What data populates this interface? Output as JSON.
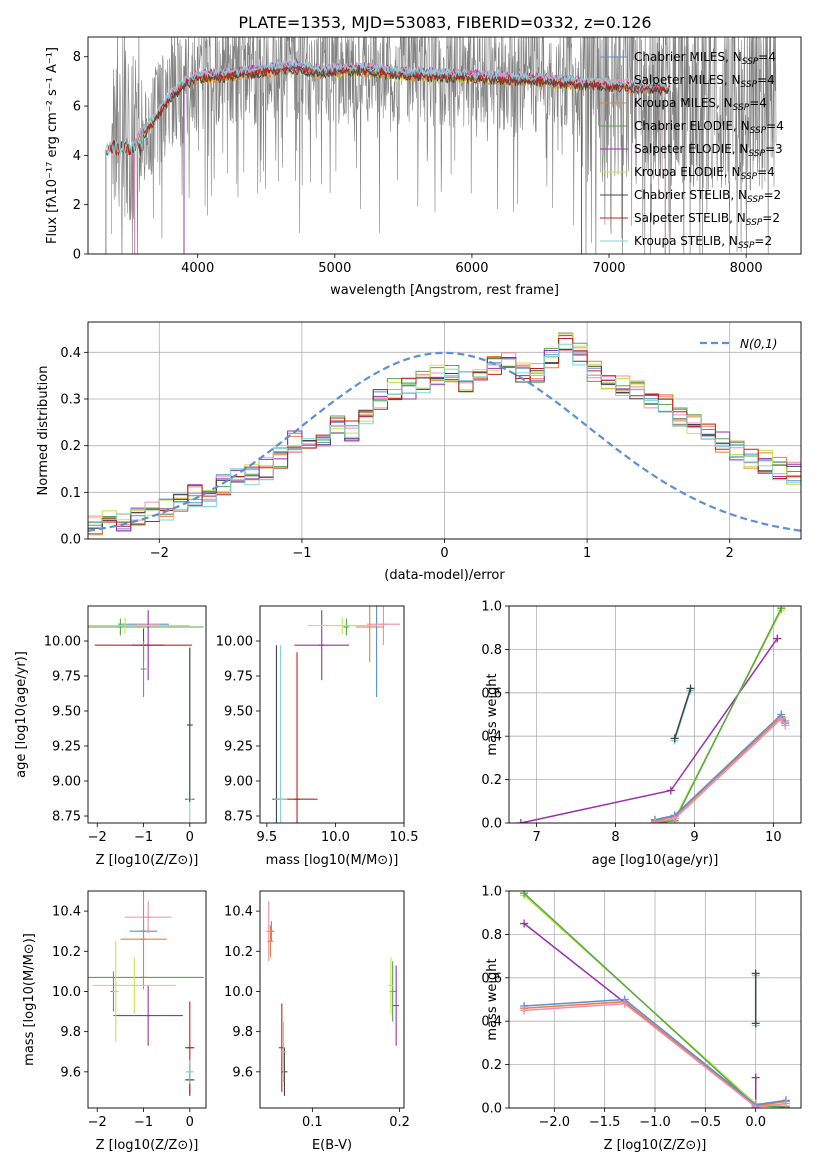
{
  "figure": {
    "title": "PLATE=1353, MJD=53083, FIBERID=0332, z=0.126"
  },
  "colors": {
    "Chabrier MILES": "#5b8fd6",
    "Salpeter MILES": "#f08cb4",
    "Kroupa MILES": "#e8803a",
    "Chabrier ELODIE": "#55a84a",
    "Salpeter ELODIE": "#9b2fae",
    "Kroupa ELODIE": "#c9e34a",
    "Chabrier STELIB": "#444444",
    "Salpeter STELIB": "#c0231b",
    "Kroupa STELIB": "#7fd6d8",
    "data": "#808080",
    "normal": "#5b8fd6"
  },
  "chart_data": [
    {
      "id": "spectrum",
      "type": "line",
      "xlabel": "wavelength [Angstrom, rest frame]",
      "ylabel": "Flux [f_λ 10^-17 erg cm^-2 s^-1 A^-1]",
      "xlim": [
        3200,
        8400
      ],
      "ylim": [
        0,
        8.8
      ],
      "xticks": [
        4000,
        5000,
        6000,
        7000,
        8000
      ],
      "yticks": [
        0,
        2,
        4,
        6,
        8
      ],
      "legend_position": "upper-right",
      "legend": [
        {
          "model": "Chabrier MILES",
          "n": "4"
        },
        {
          "model": "Salpeter MILES",
          "n": "4"
        },
        {
          "model": "Kroupa MILES",
          "n": "4"
        },
        {
          "model": "Chabrier ELODIE",
          "n": "4"
        },
        {
          "model": "Salpeter ELODIE",
          "n": "3"
        },
        {
          "model": "Kroupa ELODIE",
          "n": "4"
        },
        {
          "model": "Chabrier STELIB",
          "n": "2"
        },
        {
          "model": "Salpeter STELIB",
          "n": "2"
        },
        {
          "model": "Kroupa STELIB",
          "n": "2"
        }
      ],
      "continuum_anchors": [
        [
          3330,
          4.2
        ],
        [
          3500,
          4.4
        ],
        [
          3600,
          4.9
        ],
        [
          3700,
          5.6
        ],
        [
          3800,
          6.4
        ],
        [
          3900,
          6.9
        ],
        [
          4000,
          7.2
        ],
        [
          4200,
          7.25
        ],
        [
          4500,
          7.45
        ],
        [
          4700,
          7.6
        ],
        [
          4900,
          7.4
        ],
        [
          5200,
          7.5
        ],
        [
          5500,
          7.3
        ],
        [
          6000,
          7.2
        ],
        [
          6500,
          7.05
        ],
        [
          7000,
          6.85
        ],
        [
          7400,
          6.75
        ]
      ],
      "model_ranges": {
        "MILES": [
          3540,
          7410
        ],
        "ELODIE": [
          3900,
          6800
        ],
        "STELIB": [
          3330,
          7440
        ]
      },
      "data_range": [
        3370,
        8220
      ]
    },
    {
      "id": "residuals",
      "type": "line",
      "xlabel": "(data-model)/error",
      "ylabel": "Normed distribution",
      "xlim": [
        -2.5,
        2.5
      ],
      "ylim": [
        0,
        0.465
      ],
      "xticks": [
        -2,
        -1,
        0,
        1,
        2
      ],
      "yticks": [
        0.0,
        0.1,
        0.2,
        0.3,
        0.4
      ],
      "grid": true,
      "normal_label": "N(0,1)",
      "bin_width": 0.1,
      "bin_start": -2.5,
      "base_hist": [
        0.034,
        0.042,
        0.04,
        0.048,
        0.055,
        0.062,
        0.08,
        0.092,
        0.088,
        0.115,
        0.13,
        0.14,
        0.15,
        0.175,
        0.21,
        0.195,
        0.22,
        0.24,
        0.23,
        0.255,
        0.3,
        0.32,
        0.325,
        0.335,
        0.35,
        0.355,
        0.34,
        0.365,
        0.37,
        0.38,
        0.36,
        0.355,
        0.385,
        0.42,
        0.395,
        0.36,
        0.345,
        0.33,
        0.32,
        0.305,
        0.29,
        0.265,
        0.25,
        0.235,
        0.21,
        0.185,
        0.17,
        0.165,
        0.15,
        0.14,
        0.12,
        0.105,
        0.095,
        0.08,
        0.07,
        0.062,
        0.058,
        0.055,
        0.05,
        0.045
      ]
    },
    {
      "id": "age-vs-Z",
      "type": "scatter",
      "xlabel": "Z [log10(Z/Z⊙)]",
      "ylabel": "age [log10(age/yr)]",
      "xlim": [
        -2.2,
        0.35
      ],
      "ylim": [
        8.7,
        10.25
      ],
      "xticks": [
        -2,
        -1,
        0
      ],
      "yticks": [
        8.75,
        9.0,
        9.25,
        9.5,
        9.75,
        10.0
      ],
      "points": [
        {
          "model": "Chabrier MILES",
          "x": -1.0,
          "y": 10.12,
          "xerr": 0.55,
          "yerr": 0.0
        },
        {
          "model": "Salpeter MILES",
          "x": -0.9,
          "y": 10.12,
          "xerr": 0.25,
          "yerr": 0.0
        },
        {
          "model": "Kroupa MILES",
          "x": -1.1,
          "y": 10.1,
          "xerr": 0.5,
          "yerr": 0.0
        },
        {
          "model": "Chabrier ELODIE",
          "x": -1.5,
          "y": 10.1,
          "xerr": 1.8,
          "yerr": 0.06
        },
        {
          "model": "Salpeter ELODIE",
          "x": -0.9,
          "y": 9.97,
          "xerr": 0.35,
          "yerr": 0.25
        },
        {
          "model": "Kroupa ELODIE",
          "x": -1.4,
          "y": 10.11,
          "xerr": 1.4,
          "yerr": 0.06
        },
        {
          "model": "Chabrier STELIB",
          "x": 0.0,
          "y": 8.87,
          "xerr": 0.1,
          "yerr": 0.0
        },
        {
          "model": "Salpeter STELIB",
          "x": -1.0,
          "y": 9.97,
          "xerr": 1.05,
          "yerr": 0.12
        },
        {
          "model": "Kroupa STELIB",
          "x": 0.0,
          "y": 8.87,
          "xerr": 0.05,
          "yerr": 1.1
        },
        {
          "model": "Chabrier MILES",
          "x": -1.0,
          "y": 9.8,
          "xerr": 0.0,
          "yerr": 0.2
        },
        {
          "model": "Chabrier STELIB",
          "x": 0.0,
          "y": 9.4,
          "xerr": 0.0,
          "yerr": 0.55
        }
      ]
    },
    {
      "id": "age-vs-mass",
      "type": "scatter",
      "xlabel": "mass [log10(M/M⊙)]",
      "ylabel": "",
      "xlim": [
        9.45,
        10.5
      ],
      "ylim": [
        8.7,
        10.25
      ],
      "xticks": [
        9.5,
        10.0,
        10.5
      ],
      "yticks": [
        8.75,
        9.0,
        9.25,
        9.5,
        9.75,
        10.0
      ],
      "points": [
        {
          "model": "Chabrier MILES",
          "x": 10.3,
          "y": 10.1,
          "xerr": 0.0,
          "yerr": 0.5
        },
        {
          "model": "Salpeter MILES",
          "x": 10.35,
          "y": 10.12,
          "xerr": 0.12,
          "yerr": 0.15
        },
        {
          "model": "Kroupa MILES",
          "x": 10.25,
          "y": 10.1,
          "xerr": 0.1,
          "yerr": 0.25
        },
        {
          "model": "Chabrier ELODIE",
          "x": 10.08,
          "y": 10.1,
          "xerr": 0.0,
          "yerr": 0.06
        },
        {
          "model": "Salpeter ELODIE",
          "x": 9.9,
          "y": 9.97,
          "xerr": 0.2,
          "yerr": 0.25
        },
        {
          "model": "Kroupa ELODIE",
          "x": 10.05,
          "y": 10.11,
          "xerr": 0.25,
          "yerr": 0.06
        },
        {
          "model": "Chabrier STELIB",
          "x": 9.57,
          "y": 8.87,
          "xerr": 0.03,
          "yerr": 1.1
        },
        {
          "model": "Salpeter STELIB",
          "x": 9.72,
          "y": 8.87,
          "xerr": 0.15,
          "yerr": 1.05
        },
        {
          "model": "Kroupa STELIB",
          "x": 9.6,
          "y": 8.87,
          "xerr": 0.05,
          "yerr": 1.1
        }
      ]
    },
    {
      "id": "weight-vs-age",
      "type": "line",
      "xlabel": "age [log10(age/yr)]",
      "ylabel": "mass weight",
      "xlim": [
        6.65,
        10.35
      ],
      "ylim": [
        0,
        1.0
      ],
      "xticks": [
        7,
        8,
        9,
        10
      ],
      "yticks": [
        0.0,
        0.2,
        0.4,
        0.6,
        0.8,
        1.0
      ],
      "grid": true,
      "series": [
        {
          "model": "Kroupa STELIB",
          "x": [
            8.75,
            8.95
          ],
          "y": [
            0.38,
            0.61
          ]
        },
        {
          "model": "Chabrier STELIB",
          "x": [
            8.75,
            8.95
          ],
          "y": [
            0.39,
            0.62
          ]
        },
        {
          "model": "Salpeter ELODIE",
          "x": [
            6.8,
            8.7,
            10.05
          ],
          "y": [
            0.0,
            0.15,
            0.85
          ]
        },
        {
          "model": "Kroupa ELODIE",
          "x": [
            8.6,
            8.75,
            10.1
          ],
          "y": [
            0.01,
            0.02,
            0.98
          ]
        },
        {
          "model": "Chabrier ELODIE",
          "x": [
            8.6,
            8.75,
            10.1
          ],
          "y": [
            0.005,
            0.01,
            0.99
          ]
        },
        {
          "model": "Kroupa MILES",
          "x": [
            8.5,
            8.75,
            10.1,
            10.15
          ],
          "y": [
            0.01,
            0.03,
            0.49,
            0.47
          ]
        },
        {
          "model": "Chabrier MILES",
          "x": [
            8.5,
            8.75,
            10.1,
            10.15
          ],
          "y": [
            0.015,
            0.035,
            0.5,
            0.46
          ]
        },
        {
          "model": "Salpeter MILES",
          "x": [
            8.5,
            8.75,
            10.1,
            10.15
          ],
          "y": [
            0.005,
            0.02,
            0.48,
            0.45
          ]
        }
      ]
    },
    {
      "id": "mass-vs-Z",
      "type": "scatter",
      "xlabel": "Z [log10(Z/Z⊙)]",
      "ylabel": "mass [log10(M/M⊙)]",
      "xlim": [
        -2.2,
        0.35
      ],
      "ylim": [
        9.42,
        10.5
      ],
      "xticks": [
        -2,
        -1,
        0
      ],
      "yticks": [
        9.6,
        9.8,
        10.0,
        10.2,
        10.4
      ],
      "points": [
        {
          "model": "Chabrier MILES",
          "x": -1.0,
          "y": 10.3,
          "xerr": 0.3,
          "yerr": 0.05
        },
        {
          "model": "Salpeter MILES",
          "x": -0.9,
          "y": 10.37,
          "xerr": 0.5,
          "yerr": 0.08
        },
        {
          "model": "Kroupa MILES",
          "x": -1.0,
          "y": 10.26,
          "xerr": 0.5,
          "yerr": 0.25
        },
        {
          "model": "Chabrier ELODIE",
          "x": -1.0,
          "y": 10.07,
          "xerr": 1.3,
          "yerr": 0.0
        },
        {
          "model": "Salpeter ELODIE",
          "x": -0.9,
          "y": 9.88,
          "xerr": 0.75,
          "yerr": 0.15
        },
        {
          "model": "Kroupa ELODIE",
          "x": -1.2,
          "y": 10.03,
          "xerr": 0.9,
          "yerr": 0.14
        },
        {
          "model": "Chabrier STELIB",
          "x": 0.0,
          "y": 9.56,
          "xerr": 0.1,
          "yerr": 0.08
        },
        {
          "model": "Salpeter STELIB",
          "x": 0.0,
          "y": 9.72,
          "xerr": 0.1,
          "yerr": 0.23
        },
        {
          "model": "Kroupa STELIB",
          "x": 0.0,
          "y": 9.6,
          "xerr": 0.08,
          "yerr": 0.06
        },
        {
          "model": "Chabrier ELODIE",
          "x": -1.65,
          "y": 10.0,
          "xerr": 0.0,
          "yerr": 0.1
        },
        {
          "model": "Kroupa ELODIE",
          "x": -1.6,
          "y": 10.0,
          "xerr": 0.0,
          "yerr": 0.25
        }
      ]
    },
    {
      "id": "mass-vs-ebv",
      "type": "scatter",
      "xlabel": "E(B-V)",
      "ylabel": "",
      "xlim": [
        0.04,
        0.205
      ],
      "ylim": [
        9.42,
        10.5
      ],
      "xticks": [
        0.1,
        0.2
      ],
      "yticks": [
        9.6,
        9.8,
        10.0,
        10.2,
        10.4
      ],
      "points": [
        {
          "model": "Chabrier MILES",
          "x": 0.053,
          "y": 10.3,
          "xerr": 0.0,
          "yerr": 0.05
        },
        {
          "model": "Salpeter MILES",
          "x": 0.05,
          "y": 10.3,
          "xerr": 0.0,
          "yerr": 0.15
        },
        {
          "model": "Kroupa MILES",
          "x": 0.052,
          "y": 10.25,
          "xerr": 0.0,
          "yerr": 0.08
        },
        {
          "model": "Chabrier ELODIE",
          "x": 0.192,
          "y": 10.0,
          "xerr": 0.0,
          "yerr": 0.15
        },
        {
          "model": "Salpeter ELODIE",
          "x": 0.196,
          "y": 9.93,
          "xerr": 0.0,
          "yerr": 0.2
        },
        {
          "model": "Kroupa ELODIE",
          "x": 0.19,
          "y": 10.03,
          "xerr": 0.0,
          "yerr": 0.14
        },
        {
          "model": "Chabrier STELIB",
          "x": 0.068,
          "y": 9.6,
          "xerr": 0.0,
          "yerr": 0.12
        },
        {
          "model": "Salpeter STELIB",
          "x": 0.065,
          "y": 9.72,
          "xerr": 0.0,
          "yerr": 0.22
        },
        {
          "model": "Kroupa STELIB",
          "x": 0.067,
          "y": 9.7,
          "xerr": 0.0,
          "yerr": 0.15
        }
      ]
    },
    {
      "id": "weight-vs-Z",
      "type": "line",
      "xlabel": "Z [log10(Z/Z⊙)]",
      "ylabel": "mass weight",
      "xlim": [
        -2.45,
        0.45
      ],
      "ylim": [
        0,
        1.0
      ],
      "xticks": [
        -2.0,
        -1.5,
        -1.0,
        -0.5,
        0.0
      ],
      "yticks": [
        0.0,
        0.2,
        0.4,
        0.6,
        0.8,
        1.0
      ],
      "grid": true,
      "series": [
        {
          "model": "Kroupa STELIB",
          "x": [
            0.0,
            0.0
          ],
          "y": [
            0.38,
            0.61
          ]
        },
        {
          "model": "Chabrier STELIB",
          "x": [
            0.0,
            0.0
          ],
          "y": [
            0.39,
            0.62
          ]
        },
        {
          "model": "Salpeter ELODIE",
          "x": [
            -2.3,
            0.0,
            0.0
          ],
          "y": [
            0.85,
            0.01,
            0.14
          ]
        },
        {
          "model": "Kroupa ELODIE",
          "x": [
            -2.3,
            0.0,
            0.3
          ],
          "y": [
            0.98,
            0.02,
            0.01
          ]
        },
        {
          "model": "Chabrier ELODIE",
          "x": [
            -2.3,
            0.0,
            0.3
          ],
          "y": [
            0.99,
            0.01,
            0.005
          ]
        },
        {
          "model": "Kroupa MILES",
          "x": [
            -2.3,
            -1.3,
            0.0,
            0.3
          ],
          "y": [
            0.46,
            0.49,
            0.01,
            0.03
          ]
        },
        {
          "model": "Chabrier MILES",
          "x": [
            -2.3,
            -1.3,
            0.0,
            0.3
          ],
          "y": [
            0.47,
            0.5,
            0.015,
            0.035
          ]
        },
        {
          "model": "Salpeter MILES",
          "x": [
            -2.3,
            -1.3,
            0.0,
            0.3
          ],
          "y": [
            0.45,
            0.48,
            0.005,
            0.02
          ]
        }
      ]
    }
  ]
}
